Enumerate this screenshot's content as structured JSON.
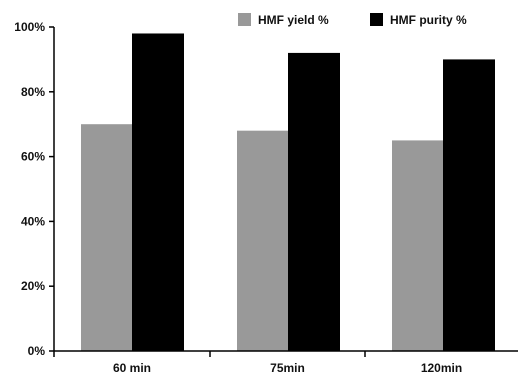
{
  "chart_data": {
    "type": "bar",
    "title": "",
    "xlabel": "",
    "ylabel": "",
    "categories": [
      "60 min",
      "75min",
      "120min"
    ],
    "series": [
      {
        "name": "HMF yield %",
        "values": [
          70,
          68,
          65
        ],
        "color": "#999999"
      },
      {
        "name": "HMF purity %",
        "values": [
          98,
          92,
          90
        ],
        "color": "#000000"
      }
    ],
    "ylim": [
      0,
      100
    ],
    "y_ticks": [
      0,
      20,
      40,
      60,
      80,
      100
    ],
    "y_tick_labels": [
      "0%",
      "20%",
      "40%",
      "60%",
      "80%",
      "100%"
    ],
    "grid": false,
    "legend_position": "top-right"
  }
}
